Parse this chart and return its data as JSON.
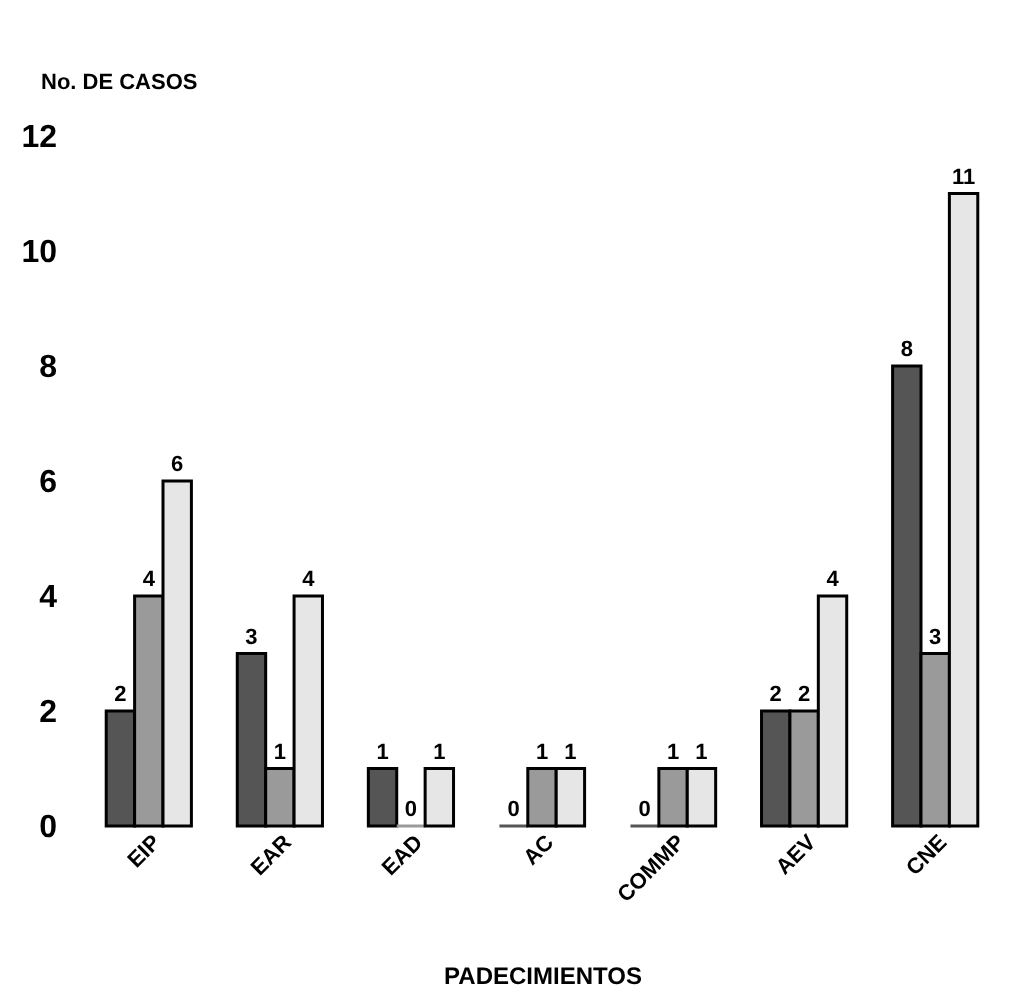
{
  "chart_data": {
    "type": "bar",
    "ylabel": "No. DE CASOS",
    "xlabel": "PADECIMIENTOS",
    "categories": [
      "EIP",
      "EAR",
      "EAD",
      "AC",
      "COMMP",
      "AEV",
      "CNE"
    ],
    "series": [
      {
        "color": "#555555",
        "values": [
          2,
          3,
          1,
          0,
          0,
          2,
          8
        ]
      },
      {
        "color": "#9a9a9a",
        "values": [
          4,
          1,
          0,
          1,
          1,
          2,
          3
        ]
      },
      {
        "color": "#e6e6e6",
        "values": [
          6,
          4,
          1,
          1,
          1,
          4,
          11
        ]
      }
    ],
    "ylim": [
      0,
      12
    ],
    "yticks": [
      0,
      2,
      4,
      6,
      8,
      10,
      12
    ],
    "grid": false,
    "data_labels": true
  }
}
